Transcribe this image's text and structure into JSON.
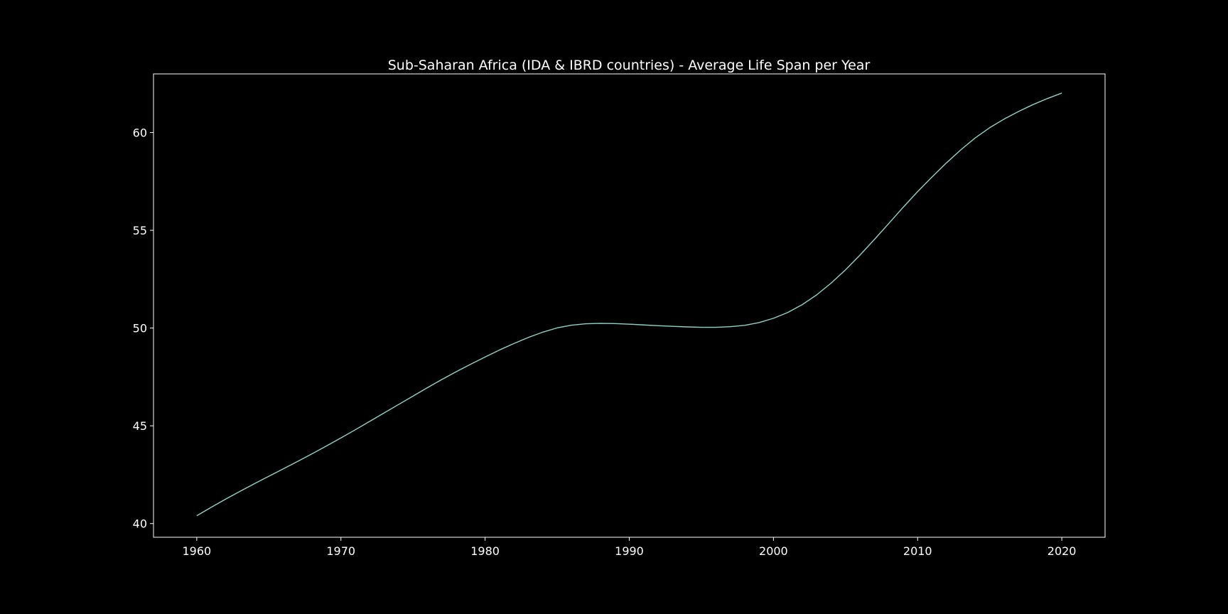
{
  "chart_data": {
    "type": "line",
    "title": "Sub-Saharan Africa (IDA & IBRD countries) - Average Life Span per Year",
    "xlabel": "",
    "ylabel": "",
    "xlim": [
      1957,
      2023
    ],
    "ylim": [
      39.3,
      63.0
    ],
    "grid": false,
    "background_color": "#000000",
    "text_color": "#ffffff",
    "line_color": "#8dd3c7",
    "x_ticks": [
      1960,
      1970,
      1980,
      1990,
      2000,
      2010,
      2020
    ],
    "x_tick_labels": [
      "1960",
      "1970",
      "1980",
      "1990",
      "2000",
      "2010",
      "2020"
    ],
    "y_ticks": [
      40,
      45,
      50,
      55,
      60
    ],
    "y_tick_labels": [
      "40",
      "45",
      "50",
      "55",
      "60"
    ],
    "series": [
      {
        "x": [
          1960,
          1961,
          1962,
          1963,
          1964,
          1965,
          1966,
          1967,
          1968,
          1969,
          1970,
          1971,
          1972,
          1973,
          1974,
          1975,
          1976,
          1977,
          1978,
          1979,
          1980,
          1981,
          1982,
          1983,
          1984,
          1985,
          1986,
          1987,
          1988,
          1989,
          1990,
          1991,
          1992,
          1993,
          1994,
          1995,
          1996,
          1997,
          1998,
          1999,
          2000,
          2001,
          2002,
          2003,
          2004,
          2005,
          2006,
          2007,
          2008,
          2009,
          2010,
          2011,
          2012,
          2013,
          2014,
          2015,
          2016,
          2017,
          2018,
          2019,
          2020
        ],
        "values": [
          40.4,
          40.83,
          41.25,
          41.65,
          42.04,
          42.42,
          42.8,
          43.18,
          43.57,
          43.97,
          44.38,
          44.8,
          45.23,
          45.66,
          46.09,
          46.52,
          46.95,
          47.37,
          47.77,
          48.15,
          48.52,
          48.88,
          49.21,
          49.52,
          49.79,
          50.01,
          50.15,
          50.22,
          50.24,
          50.23,
          50.2,
          50.16,
          50.12,
          50.09,
          50.06,
          50.04,
          50.04,
          50.07,
          50.14,
          50.28,
          50.5,
          50.8,
          51.2,
          51.7,
          52.3,
          52.98,
          53.73,
          54.53,
          55.35,
          56.18,
          56.98,
          57.73,
          58.45,
          59.12,
          59.73,
          60.25,
          60.69,
          61.08,
          61.43,
          61.74,
          62.02
        ]
      }
    ]
  }
}
